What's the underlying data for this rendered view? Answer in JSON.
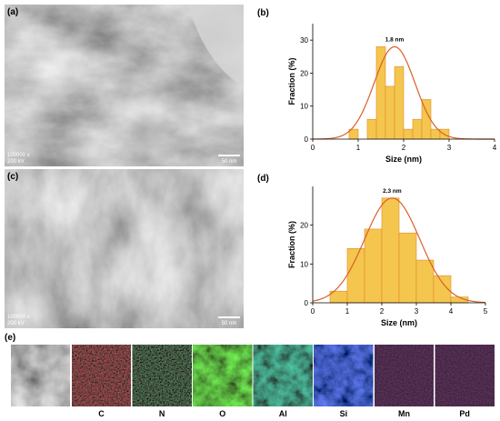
{
  "panels": {
    "a": {
      "label": "(a)",
      "magnification": "100000 x",
      "voltage": "200 kV",
      "scale_bar": "50 nm"
    },
    "b": {
      "label": "(b)"
    },
    "c": {
      "label": "(c)",
      "magnification": "100000 x",
      "voltage": "200 kV",
      "scale_bar": "50 nm"
    },
    "d": {
      "label": "(d)"
    },
    "e": {
      "label": "(e)",
      "elements": [
        "C",
        "N",
        "O",
        "Al",
        "Si",
        "Mn",
        "Pd"
      ]
    }
  },
  "chart_data": [
    {
      "type": "histogram",
      "xlabel": "Size (nm)",
      "ylabel": "Fraction (%)",
      "bins": [
        0.8,
        1.0,
        1.2,
        1.4,
        1.6,
        1.8,
        2.0,
        2.2,
        2.4,
        2.6,
        2.8,
        3.0
      ],
      "values": [
        3,
        0,
        6,
        28,
        16,
        22,
        3,
        6,
        12,
        3,
        3
      ],
      "color": "#f4c64e",
      "edge_color": "#e08a2c",
      "xlim": [
        0,
        4
      ],
      "xticks": [
        0,
        1,
        2,
        3,
        4
      ],
      "ylim": [
        0,
        35
      ],
      "yticks": [
        0,
        10,
        20,
        30
      ],
      "fit": {
        "mean": 1.8,
        "sd": 0.45,
        "peak": 28,
        "color": "#d9602a"
      },
      "annotation": "1.8 nm"
    },
    {
      "type": "histogram",
      "xlabel": "Size (nm)",
      "ylabel": "Fraction (%)",
      "bins": [
        0.5,
        1.0,
        1.5,
        2.0,
        2.5,
        3.0,
        3.5,
        4.0,
        4.5
      ],
      "values": [
        3,
        14,
        19,
        27,
        18,
        11,
        7,
        1.5
      ],
      "color": "#f4c64e",
      "edge_color": "#e08a2c",
      "xlim": [
        0,
        5
      ],
      "xticks": [
        0,
        1,
        2,
        3,
        4,
        5
      ],
      "ylim": [
        0,
        30
      ],
      "yticks": [
        0,
        10,
        20
      ],
      "fit": {
        "mean": 2.3,
        "sd": 0.8,
        "peak": 27,
        "color": "#d9602a"
      },
      "annotation": "2.3 nm"
    }
  ]
}
